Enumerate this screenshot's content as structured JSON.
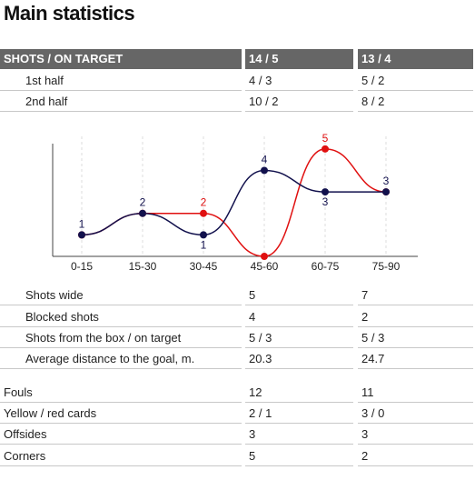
{
  "title": "Main statistics",
  "header": {
    "label": "SHOTS / ON TARGET",
    "team1": "14 / 5",
    "team2": "13 / 4"
  },
  "halves": [
    {
      "label": "1st half",
      "team1": "4 / 3",
      "team2": "5 / 2"
    },
    {
      "label": "2nd half",
      "team1": "10 / 2",
      "team2": "8 / 2"
    }
  ],
  "chart_data": {
    "type": "line",
    "categories": [
      "0-15",
      "15-30",
      "30-45",
      "45-60",
      "60-75",
      "75-90"
    ],
    "series": [
      {
        "color": "#12114d",
        "values": [
          1,
          2,
          1,
          4,
          3,
          3
        ]
      },
      {
        "color": "#e01010",
        "values": [
          1,
          2,
          2,
          0,
          5,
          3
        ]
      }
    ],
    "ylim": [
      0,
      5.5
    ],
    "grid": "vertical dashed"
  },
  "shots_details": [
    {
      "label": "Shots wide",
      "team1": "5",
      "team2": "7"
    },
    {
      "label": "Blocked shots",
      "team1": "4",
      "team2": "2"
    },
    {
      "label": "Shots from the box / on target",
      "team1": "5 / 3",
      "team2": "5 / 3"
    },
    {
      "label": "Average distance to the goal, m.",
      "team1": "20.3",
      "team2": "24.7"
    }
  ],
  "other": [
    {
      "label": "Fouls",
      "team1": "12",
      "team2": "11"
    },
    {
      "label": "Yellow / red cards",
      "team1": "2 / 1",
      "team2": "3 / 0"
    },
    {
      "label": "Offsides",
      "team1": "3",
      "team2": "3"
    },
    {
      "label": "Corners",
      "team1": "5",
      "team2": "2"
    }
  ]
}
